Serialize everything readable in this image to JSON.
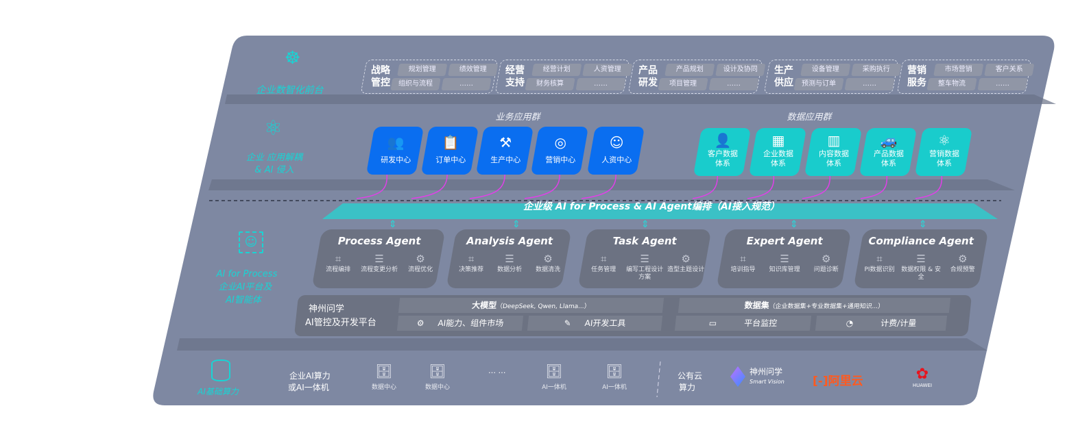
{
  "layers": {
    "frontend": {
      "label": "企业数智化前台",
      "icon": "brain-icon",
      "groups": [
        {
          "title": "战略管控",
          "items": [
            "规划管理",
            "绩效管理",
            "组织与流程",
            "……"
          ]
        },
        {
          "title": "经营支持",
          "items": [
            "经营计划",
            "人资管理",
            "财务核算",
            "……"
          ]
        },
        {
          "title": "产品研发",
          "items": [
            "产品规划",
            "设计及协同",
            "项目管理",
            "……"
          ]
        },
        {
          "title": "生产供应",
          "items": [
            "设备管理",
            "采购执行",
            "预测与订单",
            "……"
          ]
        },
        {
          "title": "营销服务",
          "items": [
            "市场营销",
            "客户关系",
            "整车物流",
            "……"
          ]
        }
      ]
    },
    "apps": {
      "label_line1": "企业 应用解耦",
      "label_line2": "& AI 侵入",
      "icon": "molecule-icon",
      "business_title": "业务应用群",
      "business": [
        {
          "label": "研发中心",
          "icon": "team-icon"
        },
        {
          "label": "订单中心",
          "icon": "clipboard-icon"
        },
        {
          "label": "生产中心",
          "icon": "production-icon"
        },
        {
          "label": "营销中心",
          "icon": "target-icon"
        },
        {
          "label": "人资中心",
          "icon": "person-icon"
        }
      ],
      "data_title": "数据应用群",
      "data": [
        {
          "line1": "客户数据",
          "line2": "体系",
          "icon": "user-icon"
        },
        {
          "line1": "企业数据",
          "line2": "体系",
          "icon": "building-icon"
        },
        {
          "line1": "内容数据",
          "line2": "体系",
          "icon": "books-icon"
        },
        {
          "line1": "产品数据",
          "line2": "体系",
          "icon": "car-icon"
        },
        {
          "line1": "营销数据",
          "line2": "体系",
          "icon": "atom-icon"
        }
      ]
    },
    "orchestration": {
      "banner": "企业级 AI for Process & AI Agent编排（AI接入规范）"
    },
    "ai": {
      "label_line1": "AI for Process",
      "label_line2": "企业AI平台及",
      "label_line3": "AI智能体",
      "icon": "face-scan-icon",
      "agents": [
        {
          "name": "Process Agent",
          "features": [
            "流程编排",
            "流程变更分析",
            "流程优化"
          ]
        },
        {
          "name": "Analysis Agent",
          "features": [
            "决策推荐",
            "数据分析",
            "数据清洗"
          ]
        },
        {
          "name": "Task Agent",
          "features": [
            "任务管理",
            "编写工程设计方案",
            "造型主题设计"
          ]
        },
        {
          "name": "Expert Agent",
          "features": [
            "培训指导",
            "知识库管理",
            "问题诊断"
          ]
        },
        {
          "name": "Compliance Agent",
          "features": [
            "PI数据识别",
            "数据权限 & 安全",
            "合规预警"
          ]
        }
      ],
      "platform": {
        "title_line1": "神州问学",
        "title_line2": "AI管控及开发平台",
        "model": "大模型",
        "model_note": "（DeepSeek, Qwen, Llama...）",
        "dataset": "数据集",
        "dataset_note": "（企业数据集+专业数据集+通用知识...）",
        "tools": [
          "AI能力、组件市场",
          "AI开发工具",
          "平台监控",
          "计费/计量"
        ]
      }
    },
    "infra": {
      "label": "AI基础算力",
      "icon": "database-icon",
      "enterprise_line1": "企业AI算力",
      "enterprise_line2": "或AI一体机",
      "servers": [
        "数据中心",
        "数据中心",
        "AI一体机",
        "AI一体机"
      ],
      "ellipsis": "… …",
      "public_line1": "公有云",
      "public_line2": "算力",
      "vendors": [
        {
          "name": "神州问学",
          "sub": "Smart Vision"
        },
        {
          "name": "阿里云",
          "mark": "[-]"
        },
        {
          "name": "HUAWEI"
        }
      ]
    }
  },
  "colors": {
    "panel": "#7e88a2",
    "blue": "#0a6ef0",
    "teal": "#19cccc",
    "cyan_label": "#19d4d4",
    "arrow": "#e040e8",
    "agent_bg": "#6c7282"
  }
}
